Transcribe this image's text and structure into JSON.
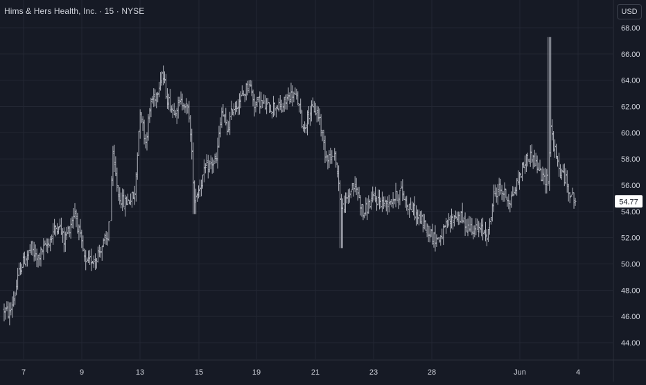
{
  "header": {
    "symbol_title": "Hims & Hers Health, Inc.",
    "interval": "15",
    "exchange": "NYSE",
    "separator": "·"
  },
  "currency_button": "USD",
  "colors": {
    "background": "#161a25",
    "grid": "#232733",
    "bars": "#b2b5be",
    "axis_text": "#d1d4dc",
    "last_price_bg": "#ffffff",
    "last_price_text": "#131722"
  },
  "chart_data": {
    "type": "ohlc_bar",
    "title": "Hims & Hers Health, Inc. · 15 · NYSE",
    "currency": "USD",
    "last_price": 54.77,
    "y_axis": {
      "ticks": [
        "44.00",
        "46.00",
        "48.00",
        "50.00",
        "52.00",
        "54.00",
        "56.00",
        "58.00",
        "60.00",
        "62.00",
        "64.00",
        "66.00",
        "68.00"
      ],
      "ylim": [
        42.5,
        69.0
      ]
    },
    "x_axis": {
      "ticks": [
        "7",
        "9",
        "13",
        "15",
        "19",
        "21",
        "23",
        "28",
        "Jun",
        "4"
      ],
      "xlim": [
        0,
        210
      ]
    },
    "grid": true,
    "price_path": [
      [
        0,
        46.5
      ],
      [
        2,
        46.2
      ],
      [
        4,
        47.8
      ],
      [
        6,
        49.8
      ],
      [
        8,
        50.5
      ],
      [
        10,
        51.2
      ],
      [
        12,
        50.3
      ],
      [
        14,
        51.0
      ],
      [
        16,
        51.5
      ],
      [
        18,
        52.4
      ],
      [
        20,
        53.1
      ],
      [
        22,
        51.8
      ],
      [
        24,
        52.8
      ],
      [
        26,
        54.1
      ],
      [
        28,
        51.9
      ],
      [
        30,
        49.9
      ],
      [
        32,
        50.3
      ],
      [
        34,
        50.6
      ],
      [
        36,
        51.4
      ],
      [
        38,
        51.9
      ],
      [
        40,
        58.0
      ],
      [
        42,
        55.3
      ],
      [
        44,
        54.6
      ],
      [
        46,
        54.9
      ],
      [
        48,
        55.2
      ],
      [
        50,
        61.8
      ],
      [
        52,
        59.3
      ],
      [
        54,
        62.4
      ],
      [
        56,
        63.0
      ],
      [
        58,
        64.6
      ],
      [
        60,
        62.6
      ],
      [
        62,
        61.7
      ],
      [
        64,
        62.1
      ],
      [
        66,
        62.4
      ],
      [
        68,
        61.4
      ],
      [
        70,
        55.0
      ],
      [
        72,
        56.0
      ],
      [
        74,
        57.2
      ],
      [
        76,
        57.6
      ],
      [
        78,
        57.9
      ],
      [
        80,
        61.6
      ],
      [
        82,
        60.2
      ],
      [
        84,
        61.8
      ],
      [
        86,
        62.3
      ],
      [
        88,
        62.9
      ],
      [
        90,
        63.9
      ],
      [
        92,
        62.2
      ],
      [
        94,
        62.4
      ],
      [
        96,
        62.0
      ],
      [
        98,
        61.9
      ],
      [
        100,
        62.1
      ],
      [
        102,
        61.8
      ],
      [
        104,
        62.6
      ],
      [
        106,
        63.0
      ],
      [
        108,
        62.4
      ],
      [
        110,
        60.3
      ],
      [
        112,
        61.5
      ],
      [
        114,
        61.8
      ],
      [
        116,
        61.1
      ],
      [
        118,
        58.5
      ],
      [
        120,
        58.1
      ],
      [
        122,
        58.0
      ],
      [
        124,
        54.2
      ],
      [
        126,
        54.8
      ],
      [
        128,
        56.0
      ],
      [
        130,
        55.5
      ],
      [
        132,
        53.8
      ],
      [
        134,
        54.5
      ],
      [
        136,
        55.0
      ],
      [
        138,
        54.8
      ],
      [
        140,
        54.6
      ],
      [
        142,
        54.9
      ],
      [
        144,
        55.1
      ],
      [
        146,
        55.6
      ],
      [
        148,
        54.6
      ],
      [
        150,
        54.2
      ],
      [
        152,
        53.6
      ],
      [
        154,
        53.1
      ],
      [
        156,
        52.6
      ],
      [
        158,
        52.0
      ],
      [
        160,
        51.9
      ],
      [
        162,
        52.6
      ],
      [
        164,
        53.2
      ],
      [
        166,
        53.7
      ],
      [
        168,
        53.5
      ],
      [
        170,
        52.9
      ],
      [
        172,
        52.8
      ],
      [
        174,
        52.6
      ],
      [
        176,
        52.5
      ],
      [
        178,
        52.3
      ],
      [
        180,
        55.2
      ],
      [
        182,
        55.8
      ],
      [
        184,
        55.3
      ],
      [
        186,
        54.8
      ],
      [
        188,
        55.8
      ],
      [
        190,
        57.0
      ],
      [
        192,
        58.0
      ],
      [
        194,
        58.3
      ],
      [
        196,
        57.4
      ],
      [
        198,
        56.5
      ],
      [
        200,
        56.5
      ],
      [
        201,
        60.5
      ],
      [
        202,
        59.0
      ],
      [
        204,
        57.2
      ],
      [
        206,
        56.6
      ],
      [
        208,
        55.5
      ],
      [
        210,
        54.77
      ]
    ]
  }
}
